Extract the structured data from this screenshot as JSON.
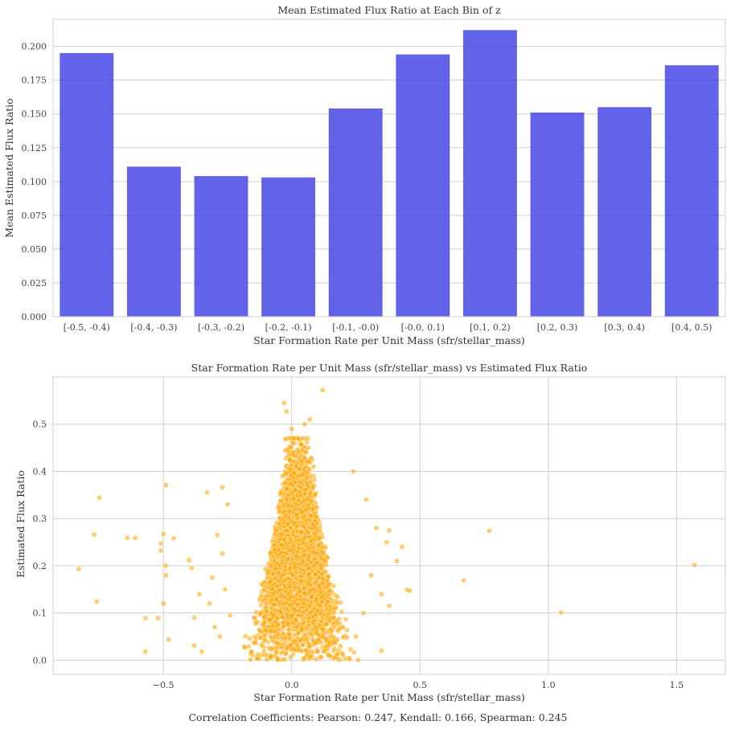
{
  "chart_data": [
    {
      "type": "bar",
      "title": "Mean Estimated Flux Ratio at Each Bin of z",
      "xlabel": "Star Formation Rate per Unit Mass (sfr/stellar_mass)",
      "ylabel": "Mean Estimated Flux Ratio",
      "categories": [
        "[-0.5, -0.4)",
        "[-0.4, -0.3)",
        "[-0.3, -0.2)",
        "[-0.2, -0.1)",
        "[-0.1, -0.0)",
        "[-0.0, 0.1)",
        "[0.1, 0.2)",
        "[0.2, 0.3)",
        "[0.3, 0.4)",
        "[0.4, 0.5)"
      ],
      "values": [
        0.195,
        0.111,
        0.104,
        0.103,
        0.154,
        0.194,
        0.212,
        0.151,
        0.155,
        0.186
      ],
      "ylim": [
        0,
        0.22
      ],
      "yticks": [
        0.0,
        0.025,
        0.05,
        0.075,
        0.1,
        0.125,
        0.15,
        0.175,
        0.2
      ],
      "ytick_labels": [
        "0.000",
        "0.025",
        "0.050",
        "0.075",
        "0.100",
        "0.125",
        "0.150",
        "0.175",
        "0.200"
      ],
      "color": "#4545e6",
      "grid": true
    },
    {
      "type": "scatter",
      "title": "Star Formation Rate per Unit Mass (sfr/stellar_mass) vs Estimated Flux Ratio",
      "xlabel": "Star Formation Rate per Unit Mass (sfr/stellar_mass)",
      "ylabel": "Estimated Flux Ratio",
      "xlim": [
        -0.93,
        1.69
      ],
      "ylim": [
        -0.03,
        0.6
      ],
      "xticks": [
        -0.5,
        0.0,
        0.5,
        1.0,
        1.5
      ],
      "xtick_labels": [
        "−0.5",
        "0.0",
        "0.5",
        "1.0",
        "1.5"
      ],
      "yticks": [
        0.0,
        0.1,
        0.2,
        0.3,
        0.4,
        0.5
      ],
      "ytick_labels": [
        "0.0",
        "0.1",
        "0.2",
        "0.3",
        "0.4",
        "0.5"
      ],
      "color": "#ffa500",
      "grid": true,
      "points": [
        [
          1.57,
          0.202
        ],
        [
          1.05,
          0.101
        ],
        [
          0.77,
          0.274
        ],
        [
          0.67,
          0.169
        ],
        [
          0.46,
          0.147
        ],
        [
          0.45,
          0.149
        ],
        [
          0.43,
          0.24
        ],
        [
          0.41,
          0.21
        ],
        [
          0.38,
          0.275
        ],
        [
          0.37,
          0.25
        ],
        [
          0.38,
          0.115
        ],
        [
          0.35,
          0.02
        ],
        [
          0.35,
          0.14
        ],
        [
          0.29,
          0.34
        ],
        [
          0.24,
          0.4
        ],
        [
          0.25,
          0.05
        ],
        [
          0.28,
          0.1
        ],
        [
          0.31,
          0.18
        ],
        [
          0.33,
          0.28
        ],
        [
          0.12,
          0.572
        ],
        [
          -0.03,
          0.545
        ],
        [
          0.07,
          0.51
        ],
        [
          0.05,
          0.5
        ],
        [
          -0.02,
          0.527
        ],
        [
          0.0,
          0.49
        ],
        [
          -0.75,
          0.344
        ],
        [
          -0.77,
          0.266
        ],
        [
          -0.83,
          0.193
        ],
        [
          -0.76,
          0.124
        ],
        [
          -0.64,
          0.259
        ],
        [
          -0.61,
          0.259
        ],
        [
          -0.57,
          0.089
        ],
        [
          -0.57,
          0.018
        ],
        [
          -0.52,
          0.089
        ],
        [
          -0.5,
          0.267
        ],
        [
          -0.51,
          0.247
        ],
        [
          -0.51,
          0.232
        ],
        [
          -0.49,
          0.371
        ],
        [
          -0.49,
          0.2
        ],
        [
          -0.49,
          0.18
        ],
        [
          -0.5,
          0.12
        ],
        [
          -0.48,
          0.044
        ],
        [
          -0.46,
          0.258
        ],
        [
          -0.4,
          0.212
        ],
        [
          -0.39,
          0.195
        ],
        [
          -0.38,
          0.09
        ],
        [
          -0.38,
          0.031
        ],
        [
          -0.36,
          0.14
        ],
        [
          -0.35,
          0.018
        ],
        [
          -0.33,
          0.355
        ],
        [
          -0.27,
          0.366
        ],
        [
          -0.25,
          0.33
        ],
        [
          -0.31,
          0.175
        ],
        [
          -0.3,
          0.07
        ],
        [
          -0.28,
          0.05
        ],
        [
          -0.29,
          0.265
        ],
        [
          -0.27,
          0.226
        ],
        [
          -0.32,
          0.12
        ],
        [
          -0.26,
          0.15
        ],
        [
          -0.24,
          0.095
        ]
      ]
    }
  ],
  "caption": "Correlation Coefficients: Pearson: 0.247, Kendall: 0.166, Spearman: 0.245"
}
